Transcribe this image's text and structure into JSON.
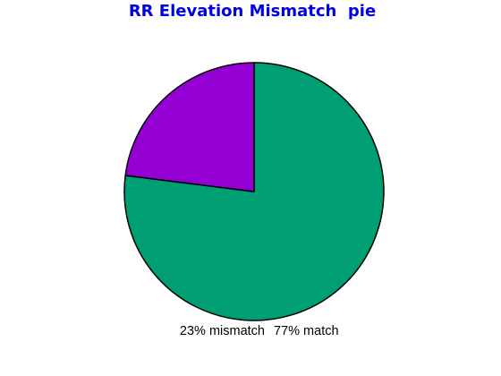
{
  "colors": {
    "title": "#0000e6",
    "slice_outline": "#000000"
  },
  "chart_data": {
    "type": "pie",
    "title": "RR Elevation Mismatch  pie",
    "start_angle": "12 o'clock, clockwise",
    "slices": [
      {
        "label": "match",
        "display_label": "77% match",
        "value": 77,
        "color": "#009e73"
      },
      {
        "label": "mismatch",
        "display_label": "23% mismatch",
        "value": 23,
        "color": "#9400d3"
      }
    ],
    "legend": "none"
  }
}
